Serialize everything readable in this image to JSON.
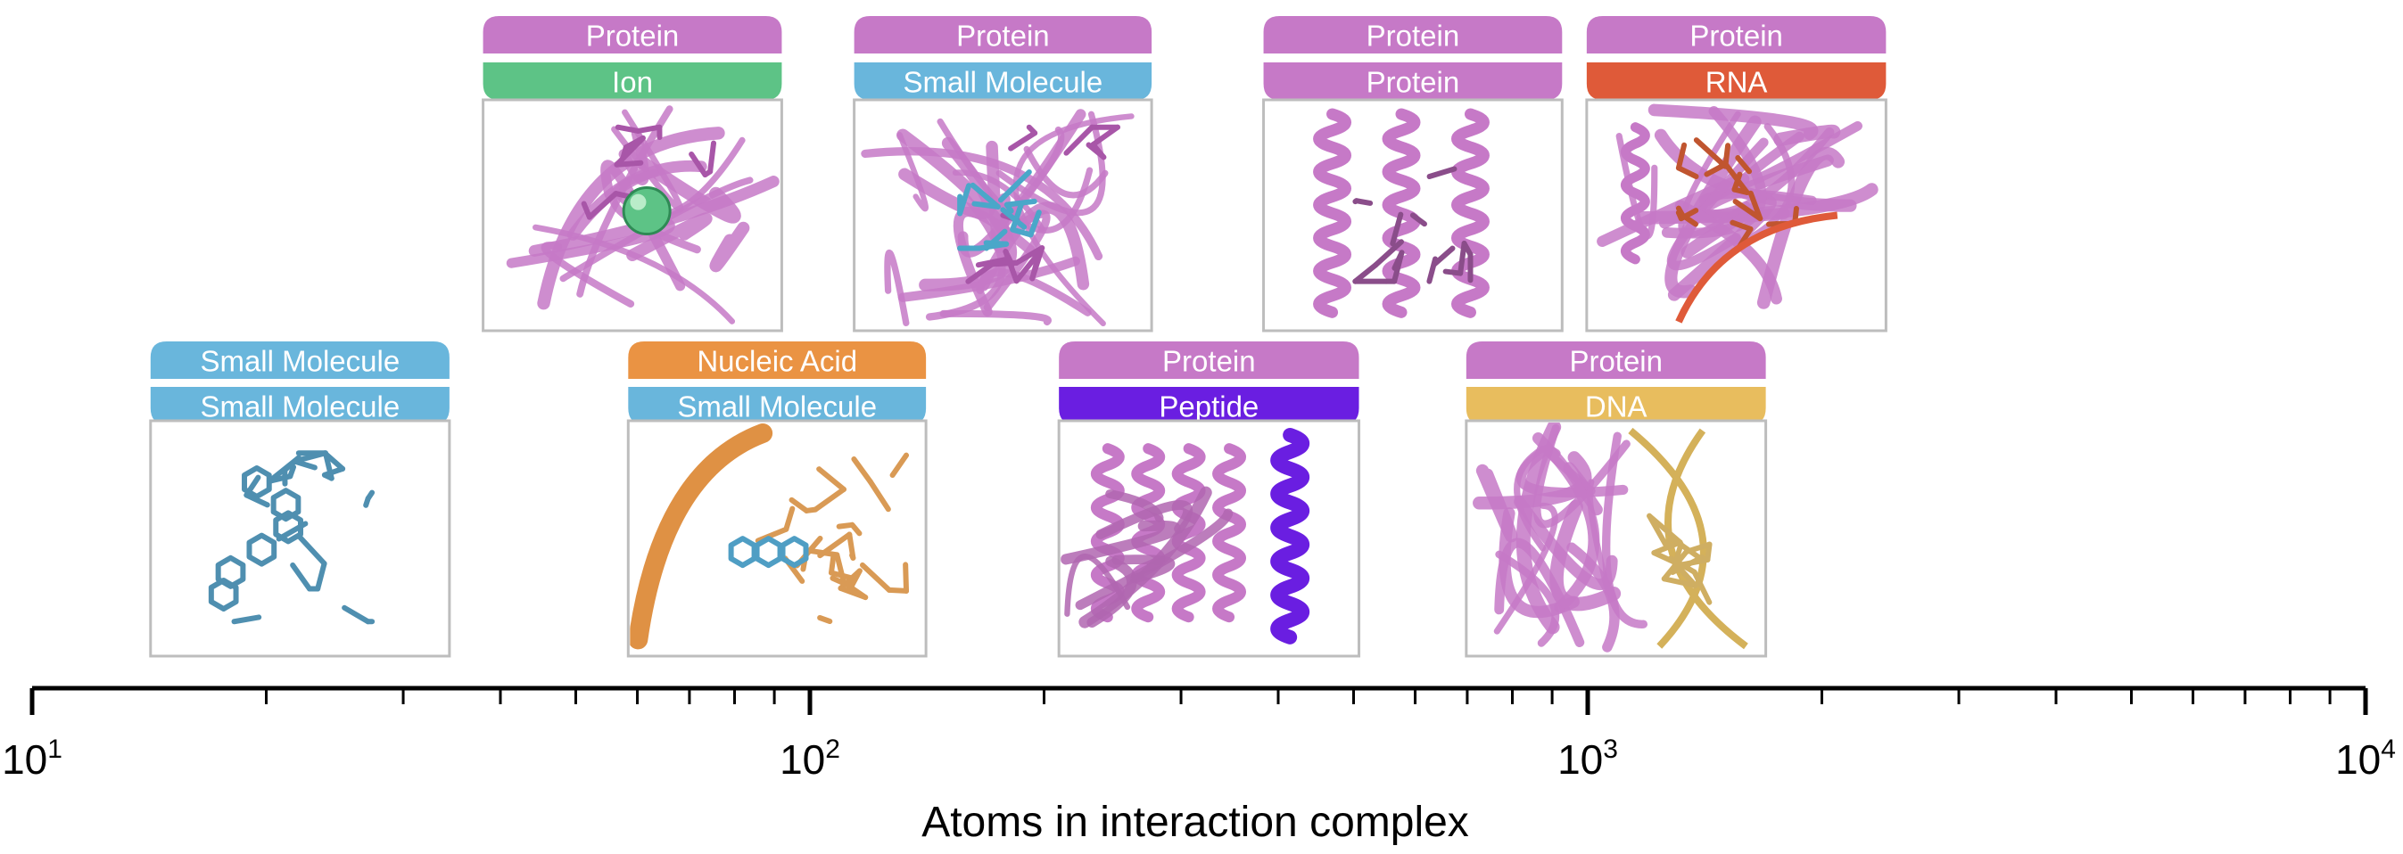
{
  "colors": {
    "protein": "#c679c7",
    "ion": "#5dc386",
    "small_molecule": "#69b6dc",
    "nucleic_acid": "#ea9343",
    "peptide": "#6a1ee1",
    "dna": "#e8bd5e",
    "rna": "#df5a39",
    "frame": "#bdbdbd"
  },
  "axis": {
    "title": "Atoms in interaction complex",
    "scale": "log",
    "range": [
      10,
      10000
    ],
    "major_ticks": [
      {
        "base": "10",
        "exp": "1",
        "value": 10
      },
      {
        "base": "10",
        "exp": "2",
        "value": 100
      },
      {
        "base": "10",
        "exp": "3",
        "value": 1000
      },
      {
        "base": "10",
        "exp": "4",
        "value": 10000
      }
    ]
  },
  "complexes": [
    {
      "id": "sm-sm",
      "row": "bottom",
      "atoms_low": 14.2,
      "atoms_high": 34.4,
      "top_label": "Small Molecule",
      "top_color": "small_molecule",
      "bottom_label": "Small Molecule",
      "bottom_color": "small_molecule",
      "structure": "small-molecule-icon"
    },
    {
      "id": "prot-ion",
      "row": "top",
      "atoms_low": 38.0,
      "atoms_high": 92.0,
      "top_label": "Protein",
      "top_color": "protein",
      "bottom_label": "Ion",
      "bottom_color": "ion",
      "structure": "protein-ion-icon"
    },
    {
      "id": "na-sm",
      "row": "bottom",
      "atoms_low": 58.4,
      "atoms_high": 141.0,
      "top_label": "Nucleic Acid",
      "top_color": "nucleic_acid",
      "bottom_label": "Small Molecule",
      "bottom_color": "small_molecule",
      "structure": "nucleic-acid-small-molecule-icon"
    },
    {
      "id": "prot-sm",
      "row": "top",
      "atoms_low": 114.0,
      "atoms_high": 275.0,
      "top_label": "Protein",
      "top_color": "protein",
      "bottom_label": "Small Molecule",
      "bottom_color": "small_molecule",
      "structure": "protein-small-molecule-icon"
    },
    {
      "id": "prot-pep",
      "row": "bottom",
      "atoms_low": 209.0,
      "atoms_high": 508.0,
      "top_label": "Protein",
      "top_color": "protein",
      "bottom_label": "Peptide",
      "bottom_color": "peptide",
      "structure": "protein-peptide-icon"
    },
    {
      "id": "prot-prot",
      "row": "top",
      "atoms_low": 383.0,
      "atoms_high": 927.0,
      "top_label": "Protein",
      "top_color": "protein",
      "bottom_label": "Protein",
      "bottom_color": "protein",
      "structure": "protein-protein-icon"
    },
    {
      "id": "prot-dna",
      "row": "bottom",
      "atoms_low": 698.0,
      "atoms_high": 1694.0,
      "top_label": "Protein",
      "top_color": "protein",
      "bottom_label": "DNA",
      "bottom_color": "dna",
      "structure": "protein-dna-icon"
    },
    {
      "id": "prot-rna",
      "row": "top",
      "atoms_low": 997.0,
      "atoms_high": 2418.0,
      "top_label": "Protein",
      "top_color": "protein",
      "bottom_label": "RNA",
      "bottom_color": "rna",
      "structure": "protein-rna-icon"
    }
  ]
}
